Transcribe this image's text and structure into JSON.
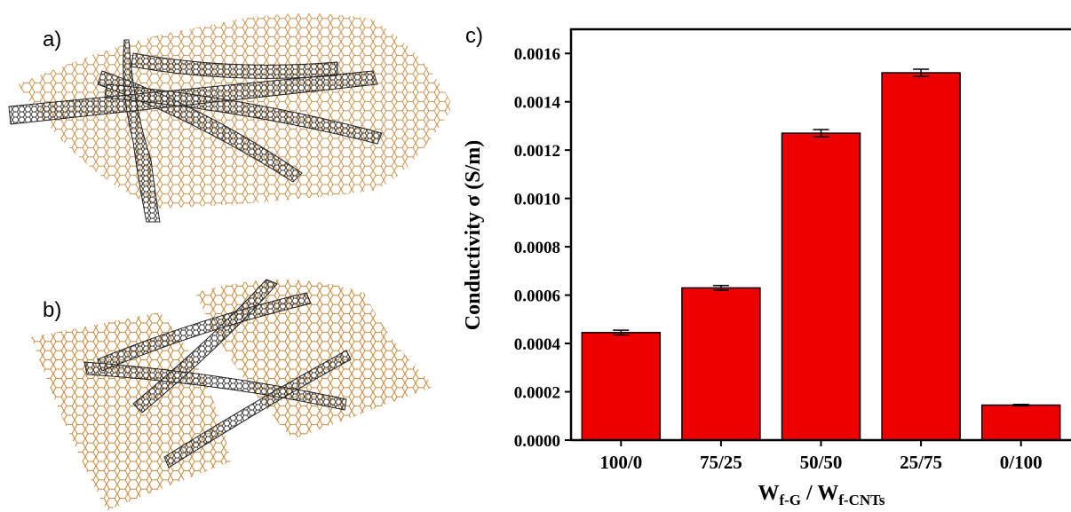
{
  "panel_labels": [
    "a)",
    "b)",
    "c)"
  ],
  "chart_data": {
    "type": "bar",
    "ylabel": "Conductivity σ (S/m)",
    "xlabel": {
      "w1": "W",
      "sub1": "f-G",
      "w2": " / W",
      "sub2": "f-CNTs"
    },
    "categories": [
      "100/0",
      "75/25",
      "50/50",
      "25/75",
      "0/100"
    ],
    "values": [
      0.000445,
      0.00063,
      0.00127,
      0.00152,
      0.000145
    ],
    "errors": [
      1e-05,
      1e-05,
      1.5e-05,
      1.5e-05,
      3e-06
    ],
    "color": "#ee0000",
    "ylim": [
      0,
      0.0017
    ],
    "yticks": [
      {
        "value": 0,
        "label": "0.0000"
      },
      {
        "value": 0.0002,
        "label": "0.0002"
      },
      {
        "value": 0.0004,
        "label": "0.0004"
      },
      {
        "value": 0.0006,
        "label": "0.0006"
      },
      {
        "value": 0.0008,
        "label": "0.0008"
      },
      {
        "value": 0.001,
        "label": "0.0010"
      },
      {
        "value": 0.0012,
        "label": "0.0012"
      },
      {
        "value": 0.0014,
        "label": "0.0014"
      },
      {
        "value": 0.0016,
        "label": "0.0016"
      }
    ]
  }
}
